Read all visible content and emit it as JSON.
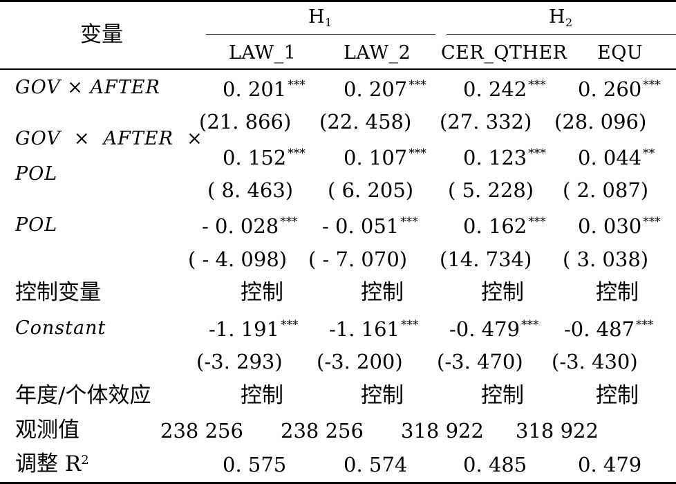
{
  "header": {
    "variable_label": "变量",
    "group1": {
      "label": "H",
      "sub": "1"
    },
    "group2": {
      "label": "H",
      "sub": "2"
    },
    "columns": [
      "LAW_1",
      "LAW_2",
      "CER_QTHER",
      "EQU"
    ]
  },
  "rows": {
    "gov_after": {
      "label": "GOV × AFTER",
      "coefs": [
        "0. 201",
        "0. 207",
        "0. 242",
        "0. 260"
      ],
      "stars": [
        "***",
        "***",
        "***",
        "***"
      ],
      "tstats": [
        "(21. 866)",
        "(22. 458)",
        "(27. 332)",
        "(28. 096)"
      ]
    },
    "gov_after_pol": {
      "label_line1": "GOV  ×  AFTER  ×",
      "label_line2": "POL",
      "coefs": [
        "0. 152",
        "0. 107",
        "0. 123",
        "0. 044"
      ],
      "stars": [
        "***",
        "***",
        "***",
        "**"
      ],
      "tstats": [
        "( 8. 463)",
        "( 6. 205)",
        "( 5. 228)",
        "( 2. 087)"
      ]
    },
    "pol": {
      "label": "POL",
      "coefs": [
        "- 0. 028",
        "- 0. 051",
        "0. 162",
        "0. 030"
      ],
      "stars": [
        "***",
        "***",
        "***",
        "***"
      ],
      "tstats": [
        "( - 4. 098)",
        "( - 7. 070)",
        "(14. 734)",
        "( 3. 038)"
      ]
    },
    "controls": {
      "label": "控制变量",
      "values": [
        "控制",
        "控制",
        "控制",
        "控制"
      ]
    },
    "constant": {
      "label": "Constant",
      "coefs": [
        "-1. 191",
        "-1. 161",
        "-0. 479",
        "-0. 487"
      ],
      "stars": [
        "***",
        "***",
        "***",
        "***"
      ],
      "tstats": [
        "(-3. 293)",
        "(-3. 200)",
        "(-3. 470)",
        "(-3. 430)"
      ]
    },
    "year_fe": {
      "label": "年度/个体效应",
      "values": [
        "控制",
        "控制",
        "控制",
        "控制"
      ]
    },
    "observations": {
      "label": "观测值",
      "values": [
        "238 256",
        "238 256",
        "318 922",
        "318 922"
      ]
    },
    "adj_r2": {
      "label": "调整 R",
      "sup": "2",
      "values": [
        "0. 575",
        "0. 574",
        "0. 485",
        "0. 479"
      ]
    }
  }
}
